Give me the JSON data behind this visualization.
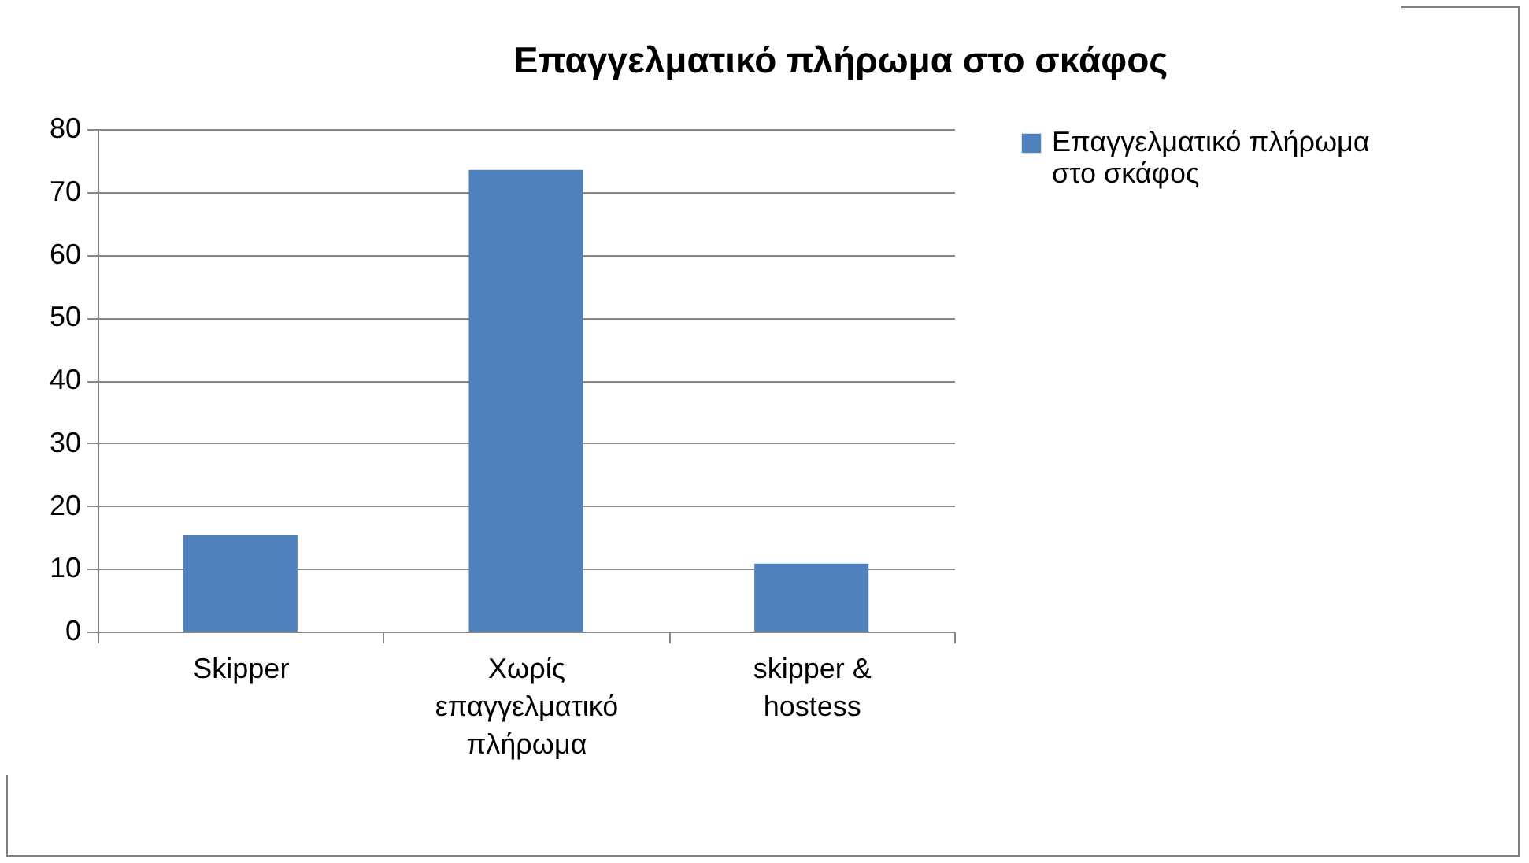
{
  "chart_data": {
    "type": "bar",
    "title": "Επαγγελματικό πλήρωμα στο σκάφος",
    "categories": [
      "Skipper",
      "Χωρίς επαγγελματικό πλήρωμα",
      "skipper & hostess"
    ],
    "series": [
      {
        "name": "Επαγγελματικό πλήρωμα στο σκάφος",
        "color": "#4f81bd",
        "values": [
          15.3,
          73.5,
          10.8
        ]
      }
    ],
    "ylim": [
      0,
      80
    ],
    "yticks": [
      0,
      10,
      20,
      30,
      40,
      50,
      60,
      70,
      80
    ],
    "grid": "y",
    "legend": "right"
  }
}
